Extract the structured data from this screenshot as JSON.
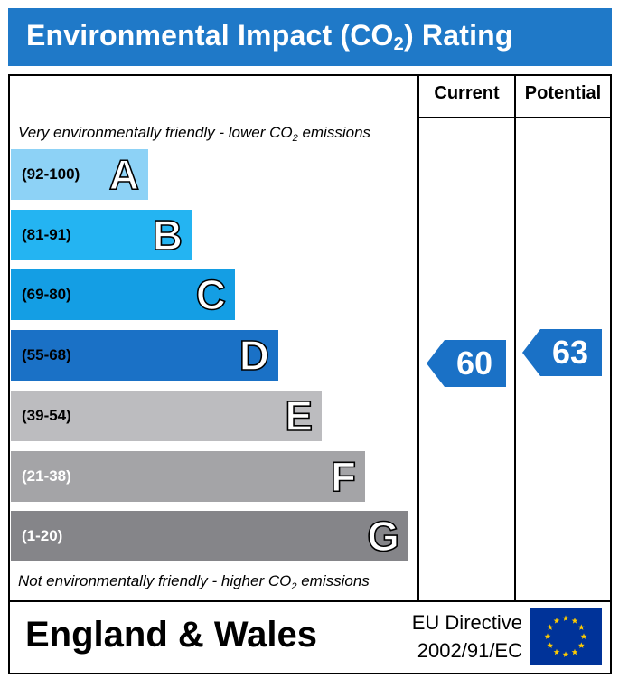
{
  "header": {
    "title_main": "Environmental Impact (CO",
    "title_sub": "2",
    "title_end": ") Rating",
    "color": "#1f79c8"
  },
  "columns": {
    "current": "Current",
    "potential": "Potential"
  },
  "notes": {
    "top_main": "Very environmentally friendly - lower CO",
    "top_sub": "2",
    "top_end": " emissions",
    "bottom_main": "Not environmentally friendly - higher CO",
    "bottom_sub": "2",
    "bottom_end": " emissions"
  },
  "bands": [
    {
      "range": "(92-100)",
      "letter": "A",
      "color": "#8dd2f6",
      "text_color": "#000000"
    },
    {
      "range": "(81-91)",
      "letter": "B",
      "color": "#24b4f2",
      "text_color": "#000000"
    },
    {
      "range": "(69-80)",
      "letter": "C",
      "color": "#149ee4",
      "text_color": "#000000"
    },
    {
      "range": "(55-68)",
      "letter": "D",
      "color": "#1a71c6",
      "text_color": "#000000"
    },
    {
      "range": "(39-54)",
      "letter": "E",
      "color": "#bcbcbf",
      "text_color": "#000000"
    },
    {
      "range": "(21-38)",
      "letter": "F",
      "color": "#a4a4a7",
      "text_color": "#ffffff"
    },
    {
      "range": "(1-20)",
      "letter": "G",
      "color": "#858589",
      "text_color": "#ffffff"
    }
  ],
  "current": {
    "value": "60",
    "band": "D",
    "color": "#1a71c6"
  },
  "potential": {
    "value": "63",
    "band": "D",
    "color": "#1a71c6"
  },
  "footer": {
    "region": "England & Wales",
    "directive_line1": "EU Directive",
    "directive_line2": "2002/91/EC"
  },
  "icons": {
    "flag": "eu-flag-icon"
  },
  "flag_colors": {
    "background": "#003399",
    "stars": "#ffcc00"
  }
}
